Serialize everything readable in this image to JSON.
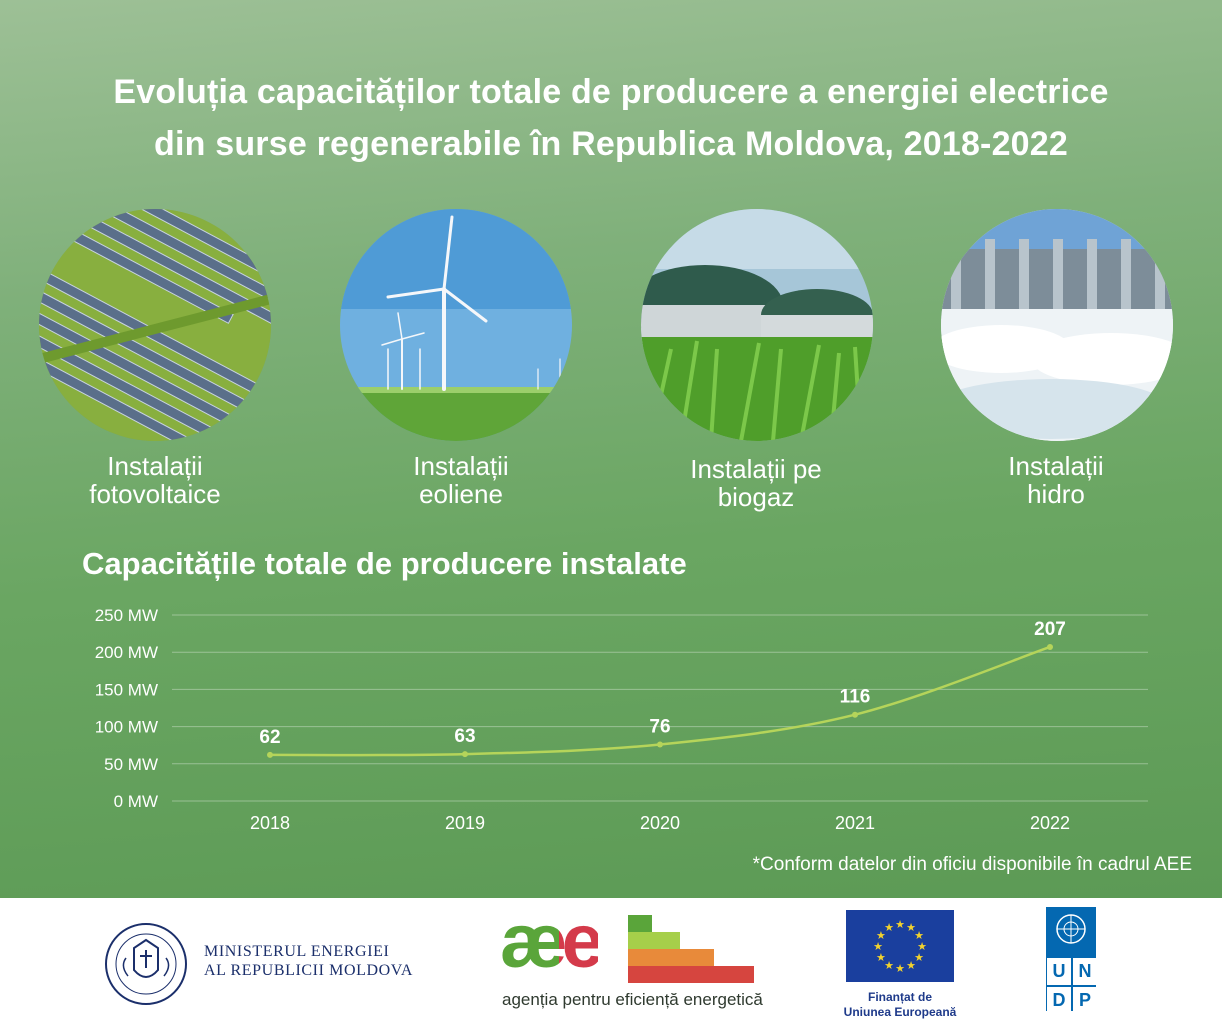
{
  "title_line1": "Evoluția capacităților totale de producere a energiei electrice",
  "title_line2": "din surse regenerabile în Republica Moldova, 2018-2022",
  "categories": [
    {
      "line1": "Instalații",
      "line2": "fotovoltaice"
    },
    {
      "line1": "Instalații",
      "line2": "eoliene"
    },
    {
      "line1": "Instalații pe",
      "line2": "biogaz"
    },
    {
      "line1": "Instalații",
      "line2": "hidro"
    }
  ],
  "chart_subtitle": "Capacitățile totale de producere instalate",
  "footnote": "*Conform datelor din oficiu disponibile în cadrul AEE",
  "chart_data": {
    "type": "line",
    "title": "Capacitățile totale de producere instalate",
    "categories": [
      "2018",
      "2019",
      "2020",
      "2021",
      "2022"
    ],
    "values": [
      62,
      63,
      76,
      116,
      207
    ],
    "value_labels": [
      "62",
      "63",
      "76",
      "116",
      "207"
    ],
    "y_ticks": [
      "0 MW",
      "50 MW",
      "100 MW",
      "150 MW",
      "200 MW",
      "250 MW"
    ],
    "ylim": [
      0,
      250
    ],
    "unit": "MW",
    "line_color": "#b5d45a"
  },
  "footer": {
    "ministry_line1": "MINISTERUL ENERGIEI",
    "ministry_line2": "AL REPUBLICII MOLDOVA",
    "aee_logo": "æe",
    "aee_caption": "agenția pentru eficiență energetică",
    "eu_line1": "Finanțat de",
    "eu_line2": "Uniunea Europeană",
    "undp_letters": [
      "U",
      "N",
      "D",
      "P"
    ]
  }
}
